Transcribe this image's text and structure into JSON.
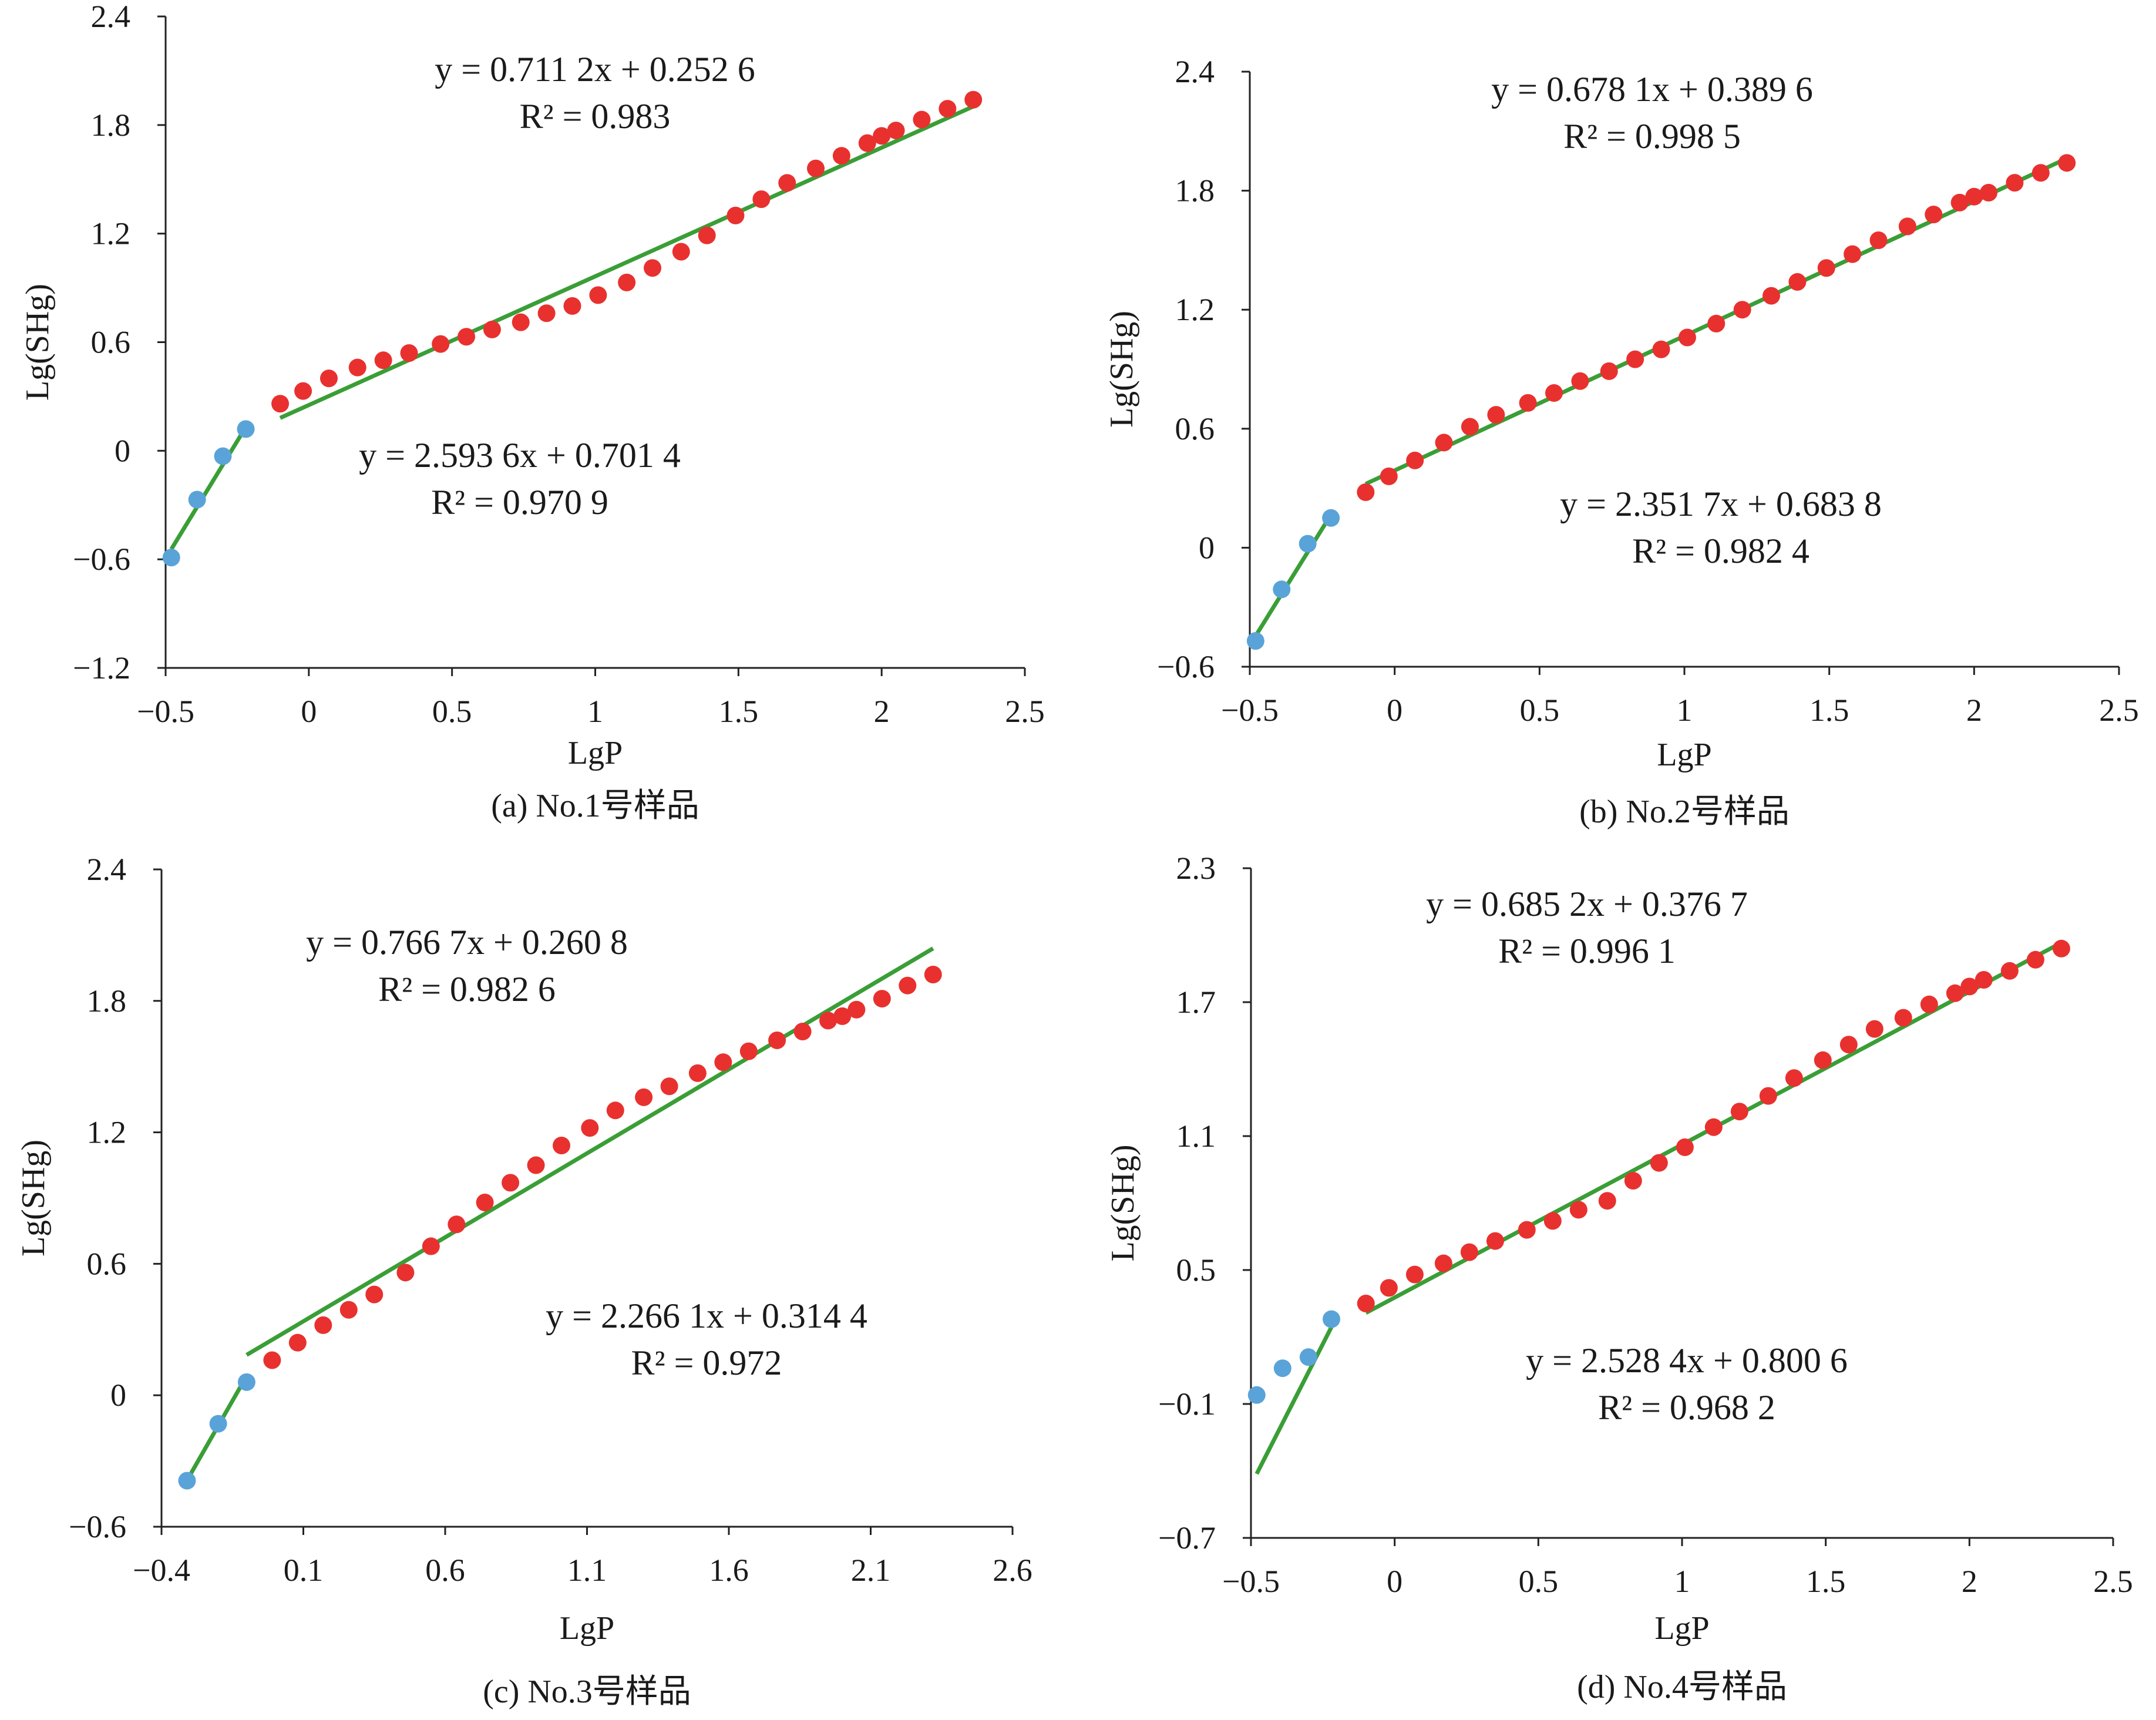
{
  "colors": {
    "fit_line": "#3a9e36",
    "low_points": "#5aa3d8",
    "high_points": "#e8312f",
    "axis": "#222222"
  },
  "chart_data": [
    {
      "type": "scatter",
      "caption": "(a) No.1号样品",
      "xlabel": "LgP",
      "ylabel": "Lg(SHg)",
      "xlim": [
        -0.5,
        2.5
      ],
      "ylim": [
        -1.2,
        2.4
      ],
      "xticks": [
        "−0.5",
        "0",
        "0.5",
        "1",
        "1.5",
        "2",
        "2.5"
      ],
      "yticks": [
        "2.4",
        "1.8",
        "1.2",
        "0.6",
        "0",
        "−0.6",
        "−1.2"
      ],
      "series": [
        {
          "color_key": "low_points",
          "x": [
            -0.48,
            -0.39,
            -0.3,
            -0.22
          ],
          "y": [
            -0.59,
            -0.27,
            -0.03,
            0.12
          ]
        },
        {
          "color_key": "high_points",
          "x": [
            -0.1,
            -0.02,
            0.07,
            0.17,
            0.26,
            0.35,
            0.46,
            0.55,
            0.64,
            0.74,
            0.83,
            0.92,
            1.01,
            1.11,
            1.2,
            1.3,
            1.39,
            1.49,
            1.58,
            1.67,
            1.77,
            1.86,
            1.95,
            2.0,
            2.05,
            2.14,
            2.23,
            2.32
          ],
          "y": [
            0.26,
            0.33,
            0.4,
            0.46,
            0.5,
            0.54,
            0.59,
            0.63,
            0.67,
            0.71,
            0.76,
            0.8,
            0.86,
            0.93,
            1.01,
            1.1,
            1.19,
            1.3,
            1.39,
            1.48,
            1.56,
            1.63,
            1.7,
            1.74,
            1.77,
            1.83,
            1.89,
            1.94
          ]
        }
      ],
      "fits": [
        {
          "x_range": [
            -0.48,
            -0.22
          ],
          "slope": 2.5936,
          "intercept": 0.7014,
          "equation": "y = 2.593 6x + 0.701 4",
          "r2": "R² = 0.970 9"
        },
        {
          "x_range": [
            -0.1,
            2.32
          ],
          "slope": 0.7112,
          "intercept": 0.2526,
          "equation": "y = 0.711 2x + 0.252 6",
          "r2": "R² = 0.983"
        }
      ]
    },
    {
      "type": "scatter",
      "caption": "(b) No.2号样品",
      "xlabel": "LgP",
      "ylabel": "Lg(SHg)",
      "xlim": [
        -0.5,
        2.5
      ],
      "ylim": [
        -0.6,
        2.4
      ],
      "xticks": [
        "−0.5",
        "0",
        "0.5",
        "1",
        "1.5",
        "2",
        "2.5"
      ],
      "yticks": [
        "2.4",
        "1.8",
        "1.2",
        "0.6",
        "0",
        "−0.6"
      ],
      "series": [
        {
          "color_key": "low_points",
          "x": [
            -0.48,
            -0.39,
            -0.3,
            -0.22
          ],
          "y": [
            -0.47,
            -0.21,
            0.02,
            0.15
          ]
        },
        {
          "color_key": "high_points",
          "x": [
            -0.1,
            -0.02,
            0.07,
            0.17,
            0.26,
            0.35,
            0.46,
            0.55,
            0.64,
            0.74,
            0.83,
            0.92,
            1.01,
            1.11,
            1.2,
            1.3,
            1.39,
            1.49,
            1.58,
            1.67,
            1.77,
            1.86,
            1.95,
            2.0,
            2.05,
            2.14,
            2.23,
            2.32
          ],
          "y": [
            0.28,
            0.36,
            0.44,
            0.53,
            0.61,
            0.67,
            0.73,
            0.78,
            0.84,
            0.89,
            0.95,
            1.0,
            1.06,
            1.13,
            1.2,
            1.27,
            1.34,
            1.41,
            1.48,
            1.55,
            1.62,
            1.68,
            1.74,
            1.77,
            1.79,
            1.84,
            1.89,
            1.94
          ]
        }
      ],
      "fits": [
        {
          "x_range": [
            -0.48,
            -0.22
          ],
          "slope": 2.3517,
          "intercept": 0.6838,
          "equation": "y = 2.351 7x + 0.683 8",
          "r2": "R² = 0.982 4"
        },
        {
          "x_range": [
            -0.1,
            2.32
          ],
          "slope": 0.6781,
          "intercept": 0.3896,
          "equation": "y = 0.678 1x + 0.389 6",
          "r2": "R² = 0.998 5"
        }
      ]
    },
    {
      "type": "scatter",
      "caption": "(c) No.3号样品",
      "xlabel": "LgP",
      "ylabel": "Lg(SHg)",
      "xlim": [
        -0.4,
        2.6
      ],
      "ylim": [
        -0.6,
        2.4
      ],
      "xticks": [
        "−0.4",
        "0.1",
        "0.6",
        "1.1",
        "1.6",
        "2.1",
        "2.6"
      ],
      "yticks": [
        "2.4",
        "1.8",
        "1.2",
        "0.6",
        "0",
        "−0.6"
      ],
      "series": [
        {
          "color_key": "low_points",
          "x": [
            -0.31,
            -0.2,
            -0.1
          ],
          "y": [
            -0.39,
            -0.13,
            0.06
          ]
        },
        {
          "color_key": "high_points",
          "x": [
            -0.01,
            0.08,
            0.17,
            0.26,
            0.35,
            0.46,
            0.55,
            0.64,
            0.74,
            0.83,
            0.92,
            1.01,
            1.11,
            1.2,
            1.3,
            1.39,
            1.49,
            1.58,
            1.67,
            1.77,
            1.86,
            1.95,
            2.0,
            2.05,
            2.14,
            2.23,
            2.32
          ],
          "y": [
            0.16,
            0.24,
            0.32,
            0.39,
            0.46,
            0.56,
            0.68,
            0.78,
            0.88,
            0.97,
            1.05,
            1.14,
            1.22,
            1.3,
            1.36,
            1.41,
            1.47,
            1.52,
            1.57,
            1.62,
            1.66,
            1.71,
            1.73,
            1.76,
            1.81,
            1.87,
            1.92
          ]
        }
      ],
      "fits": [
        {
          "x_range": [
            -0.31,
            -0.1
          ],
          "slope": 2.2661,
          "intercept": 0.3144,
          "equation": "y = 2.266 1x + 0.314 4",
          "r2": "R² = 0.972"
        },
        {
          "x_range": [
            -0.1,
            2.32
          ],
          "slope": 0.7667,
          "intercept": 0.2608,
          "equation": "y = 0.766 7x + 0.260 8",
          "r2": "R² = 0.982 6"
        }
      ]
    },
    {
      "type": "scatter",
      "caption": "(d) No.4号样品",
      "xlabel": "LgP",
      "ylabel": "Lg(SHg)",
      "xlim": [
        -0.5,
        2.5
      ],
      "ylim": [
        -0.7,
        2.3
      ],
      "xticks": [
        "−0.5",
        "0",
        "0.5",
        "1",
        "1.5",
        "2",
        "2.5"
      ],
      "yticks": [
        "2.3",
        "1.7",
        "1.1",
        "0.5",
        "−0.1",
        "−0.7"
      ],
      "series": [
        {
          "color_key": "low_points",
          "x": [
            -0.48,
            -0.39,
            -0.3,
            -0.22
          ],
          "y": [
            -0.06,
            0.06,
            0.11,
            0.28
          ]
        },
        {
          "color_key": "high_points",
          "x": [
            -0.1,
            -0.02,
            0.07,
            0.17,
            0.26,
            0.35,
            0.46,
            0.55,
            0.64,
            0.74,
            0.83,
            0.92,
            1.01,
            1.11,
            1.2,
            1.3,
            1.39,
            1.49,
            1.58,
            1.67,
            1.77,
            1.86,
            1.95,
            2.0,
            2.05,
            2.14,
            2.23,
            2.32
          ],
          "y": [
            0.35,
            0.42,
            0.48,
            0.53,
            0.58,
            0.63,
            0.68,
            0.72,
            0.77,
            0.81,
            0.9,
            0.98,
            1.05,
            1.14,
            1.21,
            1.28,
            1.36,
            1.44,
            1.51,
            1.58,
            1.63,
            1.69,
            1.74,
            1.77,
            1.8,
            1.84,
            1.89,
            1.94
          ]
        }
      ],
      "fits": [
        {
          "x_range": [
            -0.48,
            -0.22
          ],
          "slope": 2.5284,
          "intercept": 0.8006,
          "equation": "y = 2.528 4x + 0.800 6",
          "r2": "R² = 0.968 2"
        },
        {
          "x_range": [
            -0.1,
            2.32
          ],
          "slope": 0.6852,
          "intercept": 0.3767,
          "equation": "y = 0.685 2x + 0.376 7",
          "r2": "R² = 0.996 1"
        }
      ]
    }
  ]
}
